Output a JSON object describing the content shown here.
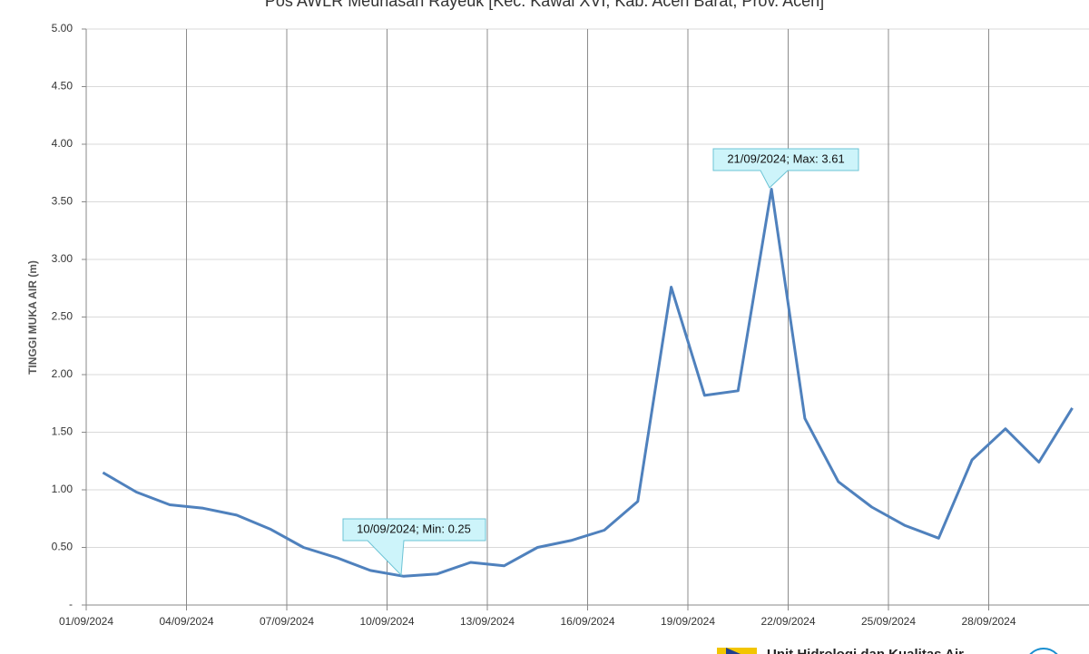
{
  "chart_data": {
    "type": "line",
    "title": "Pos AWLR Meunasah Rayeuk [Kec. Kawai XVI, Kab. Aceh Barat, Prov. Aceh]",
    "y_label": "TINGGI MUKA AIR (m)",
    "categories": [
      "01/09/2024",
      null,
      null,
      "04/09/2024",
      null,
      null,
      "07/09/2024",
      null,
      null,
      "10/09/2024",
      null,
      null,
      "13/09/2024",
      null,
      null,
      "16/09/2024",
      null,
      null,
      "19/09/2024",
      null,
      null,
      "22/09/2024",
      null,
      null,
      "25/09/2024",
      null,
      null,
      "28/09/2024",
      null,
      null
    ],
    "series": [
      {
        "name": "Tinggi Muka Air",
        "color": "#4f81bd",
        "values": [
          1.15,
          0.98,
          0.87,
          0.84,
          0.78,
          0.66,
          0.5,
          0.41,
          0.3,
          0.25,
          0.27,
          0.37,
          0.34,
          0.5,
          0.56,
          0.65,
          0.9,
          2.76,
          1.82,
          1.86,
          3.61,
          1.62,
          1.07,
          0.85,
          0.69,
          0.58,
          1.26,
          1.53,
          1.24,
          1.71
        ]
      }
    ],
    "ylim": [
      0,
      5
    ],
    "yticks": [
      {
        "value": 0,
        "label": "-"
      },
      {
        "value": 0.5,
        "label": "0.50"
      },
      {
        "value": 1,
        "label": "1.00"
      },
      {
        "value": 1.5,
        "label": "1.50"
      },
      {
        "value": 2,
        "label": "2.00"
      },
      {
        "value": 2.5,
        "label": "2.50"
      },
      {
        "value": 3,
        "label": "3.00"
      },
      {
        "value": 3.5,
        "label": "3.50"
      },
      {
        "value": 4,
        "label": "4.00"
      },
      {
        "value": 4.5,
        "label": "4.50"
      },
      {
        "value": 5,
        "label": "5.00"
      }
    ],
    "grid": true,
    "annotations": [
      "10/09/2024; Min: 0.25",
      "21/09/2024; Max: 3.61"
    ],
    "footer": "Unit Hidrologi dan Kualitas Air"
  }
}
